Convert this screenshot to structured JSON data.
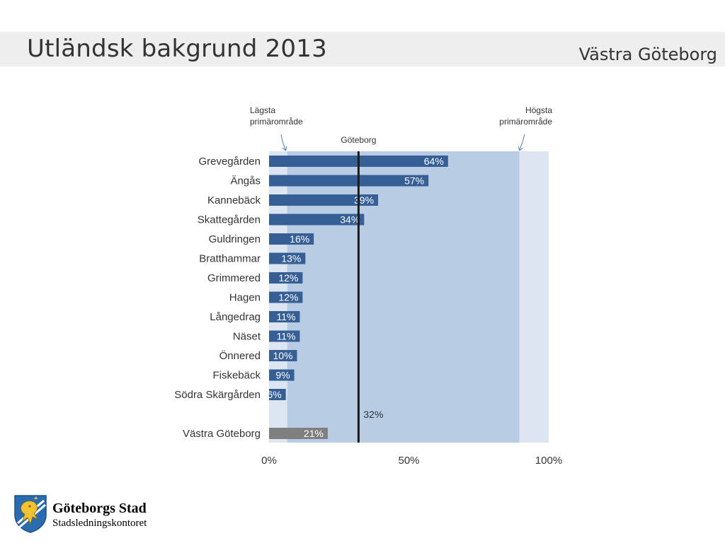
{
  "header": {
    "title": "Utländsk bakgrund 2013",
    "region": "Västra Göteborg"
  },
  "colors": {
    "bar": "#365f96",
    "total_bar": "#7f7f7f",
    "band_range": "#b8cce4",
    "band_full": "#dce6f2",
    "reference_line": "#1a1a1a"
  },
  "chart_data": {
    "type": "bar",
    "orientation": "horizontal",
    "categories": [
      "Grevegården",
      "Ängås",
      "Kannebäck",
      "Skattegården",
      "Guldringen",
      "Bratthammar",
      "Grimmered",
      "Hagen",
      "Långedrag",
      "Näset",
      "Önnered",
      "Fiskebäck",
      "Södra Skärgården"
    ],
    "values": [
      64,
      57,
      39,
      34,
      16,
      13,
      12,
      12,
      11,
      11,
      10,
      9,
      6
    ],
    "value_labels": [
      "64%",
      "57%",
      "39%",
      "34%",
      "16%",
      "13%",
      "12%",
      "12%",
      "11%",
      "11%",
      "10%",
      "9%",
      "6%"
    ],
    "total": {
      "label": "Västra Göteborg",
      "value": 21,
      "value_label": "21%"
    },
    "reference": {
      "label": "Göteborg",
      "value": 32,
      "value_label": "32%"
    },
    "range": {
      "min": 6.5,
      "max": 89.5,
      "min_label": [
        "Lägsta",
        "primärområde"
      ],
      "max_label": [
        "Högsta",
        "primärområde"
      ]
    },
    "xlim": [
      0,
      100
    ],
    "ticks": [
      0,
      50,
      100
    ],
    "tick_labels": [
      "0%",
      "50%",
      "100%"
    ]
  },
  "footer": {
    "logo_name": "Göteborgs Stad",
    "logo_sub": "Stadsledningskontoret"
  }
}
